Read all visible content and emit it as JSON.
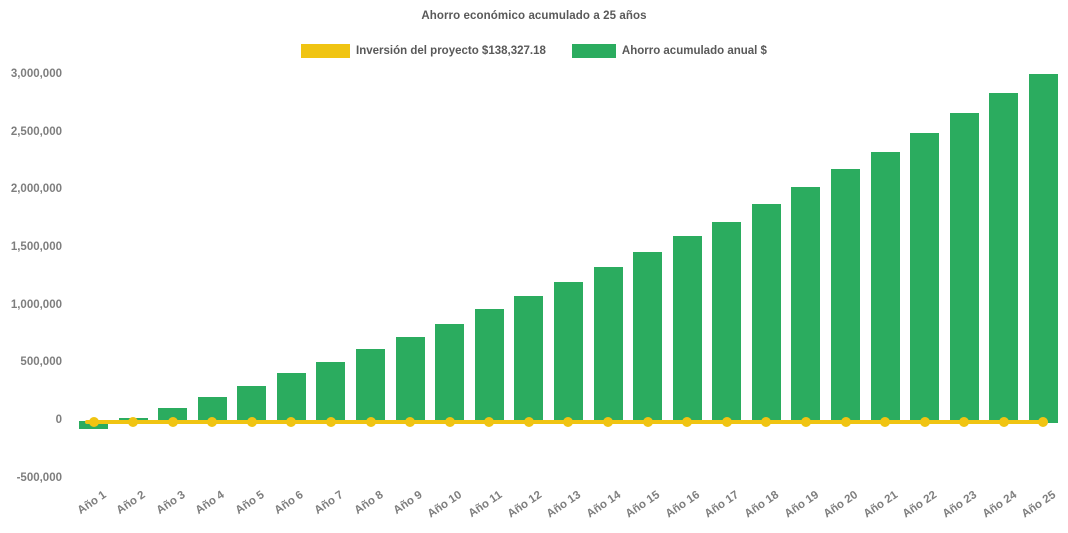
{
  "colors": {
    "background": "#FFFFFF",
    "title_text": "#595959",
    "legend_text": "#595959",
    "axis_text": "#7E7E7E",
    "investment_yellow": "#F0C412",
    "savings_green": "#2BAC5F"
  },
  "chart_data": {
    "type": "bar",
    "title": "Ahorro económico acumulado a 25 años",
    "xlabel": "",
    "ylabel": "",
    "grid": false,
    "legend_position": "top",
    "x_tick_rotation_deg": -34,
    "ylim": [
      -500000,
      3000000
    ],
    "ytick_values": [
      3000000,
      2500000,
      2000000,
      1500000,
      1000000,
      500000,
      0,
      -500000
    ],
    "ytick_labels": [
      "3,000,000",
      "2,500,000",
      "2,000,000",
      "1,500,000",
      "1,000,000",
      "500,000",
      "0",
      "-500,000"
    ],
    "categories": [
      "Año 1",
      "Año 2",
      "Año 3",
      "Año 4",
      "Año 5",
      "Año 6",
      "Año 7",
      "Año 8",
      "Año 9",
      "Año 10",
      "Año 11",
      "Año 12",
      "Año 13",
      "Año 14",
      "Año 15",
      "Año 16",
      "Año 17",
      "Año 18",
      "Año 19",
      "Año 20",
      "Año 21",
      "Año 22",
      "Año 23",
      "Año 24",
      "Año 25"
    ],
    "series": [
      {
        "name": "Inversión del proyecto $138,327.18",
        "type": "line",
        "marker": "circle",
        "color": "#F0C412",
        "values": [
          0,
          0,
          0,
          0,
          0,
          0,
          0,
          0,
          0,
          0,
          0,
          0,
          0,
          0,
          0,
          0,
          0,
          0,
          0,
          0,
          0,
          0,
          0,
          0,
          0
        ]
      },
      {
        "name": "Ahorro acumulado anual $",
        "type": "bar",
        "color": "#2BAC5F",
        "values": [
          -70000,
          20000,
          100000,
          200000,
          295000,
          405000,
          500000,
          615000,
          720000,
          830000,
          960000,
          1075000,
          1195000,
          1325000,
          1455000,
          1595000,
          1720000,
          1870000,
          2020000,
          2175000,
          2325000,
          2490000,
          2660000,
          2835000,
          3000000
        ]
      }
    ]
  }
}
